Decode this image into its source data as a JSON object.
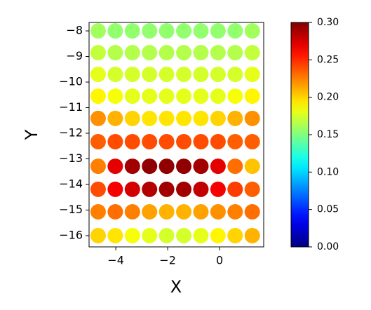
{
  "chart_data": {
    "type": "scatter",
    "xlabel": "X",
    "ylabel": "Y",
    "x": [
      -4.68,
      -4.02,
      -3.36,
      -2.7,
      -2.04,
      -1.38,
      -0.72,
      -0.06,
      0.6,
      1.26,
      -4.68,
      -4.02,
      -3.36,
      -2.7,
      -2.04,
      -1.38,
      -0.72,
      -0.06,
      0.6,
      1.26,
      -4.68,
      -4.02,
      -3.36,
      -2.7,
      -2.04,
      -1.38,
      -0.72,
      -0.06,
      0.6,
      1.26,
      -4.68,
      -4.02,
      -3.36,
      -2.7,
      -2.04,
      -1.38,
      -0.72,
      -0.06,
      0.6,
      1.26,
      -4.68,
      -4.02,
      -3.36,
      -2.7,
      -2.04,
      -1.38,
      -0.72,
      -0.06,
      0.6,
      1.26,
      -4.68,
      -4.02,
      -3.36,
      -2.7,
      -2.04,
      -1.38,
      -0.72,
      -0.06,
      0.6,
      1.26,
      -4.68,
      -4.02,
      -3.36,
      -2.7,
      -2.04,
      -1.38,
      -0.72,
      -0.06,
      0.6,
      1.26,
      -4.68,
      -4.02,
      -3.36,
      -2.7,
      -2.04,
      -1.38,
      -0.72,
      -0.06,
      0.6,
      1.26,
      -4.68,
      -4.02,
      -3.36,
      -2.7,
      -2.04,
      -1.38,
      -0.72,
      -0.06,
      0.6,
      1.26,
      -4.68,
      -4.02,
      -3.36,
      -2.7,
      -2.04,
      -1.38,
      -0.72,
      -0.06,
      0.6,
      1.26
    ],
    "y": [
      -8,
      -8,
      -8,
      -8,
      -8,
      -8,
      -8,
      -8,
      -8,
      -8,
      -8.85,
      -8.85,
      -8.85,
      -8.85,
      -8.85,
      -8.85,
      -8.85,
      -8.85,
      -8.85,
      -8.85,
      -9.7,
      -9.7,
      -9.7,
      -9.7,
      -9.7,
      -9.7,
      -9.7,
      -9.7,
      -9.7,
      -9.7,
      -10.55,
      -10.55,
      -10.55,
      -10.55,
      -10.55,
      -10.55,
      -10.55,
      -10.55,
      -10.55,
      -10.55,
      -11.42,
      -11.42,
      -11.42,
      -11.42,
      -11.42,
      -11.42,
      -11.42,
      -11.42,
      -11.42,
      -11.42,
      -12.33,
      -12.33,
      -12.33,
      -12.33,
      -12.33,
      -12.33,
      -12.33,
      -12.33,
      -12.33,
      -12.33,
      -13.29,
      -13.29,
      -13.29,
      -13.29,
      -13.29,
      -13.29,
      -13.29,
      -13.29,
      -13.29,
      -13.29,
      -14.19,
      -14.19,
      -14.19,
      -14.19,
      -14.19,
      -14.19,
      -14.19,
      -14.19,
      -14.19,
      -14.19,
      -15.07,
      -15.07,
      -15.07,
      -15.07,
      -15.07,
      -15.07,
      -15.07,
      -15.07,
      -15.07,
      -15.07,
      -16,
      -16,
      -16,
      -16,
      -16,
      -16,
      -16,
      -16,
      -16,
      -16
    ],
    "values": [
      0.16,
      0.155,
      0.155,
      0.155,
      0.155,
      0.155,
      0.155,
      0.155,
      0.155,
      0.16,
      0.17,
      0.165,
      0.165,
      0.165,
      0.165,
      0.165,
      0.165,
      0.165,
      0.165,
      0.17,
      0.18,
      0.175,
      0.175,
      0.175,
      0.175,
      0.175,
      0.175,
      0.175,
      0.175,
      0.18,
      0.19,
      0.185,
      0.18,
      0.18,
      0.18,
      0.18,
      0.18,
      0.18,
      0.185,
      0.19,
      0.22,
      0.21,
      0.2,
      0.195,
      0.195,
      0.195,
      0.195,
      0.2,
      0.21,
      0.22,
      0.235,
      0.24,
      0.24,
      0.24,
      0.24,
      0.24,
      0.24,
      0.24,
      0.235,
      0.235,
      0.225,
      0.27,
      0.29,
      0.295,
      0.295,
      0.295,
      0.29,
      0.27,
      0.23,
      0.205,
      0.24,
      0.265,
      0.275,
      0.285,
      0.29,
      0.29,
      0.28,
      0.265,
      0.245,
      0.235,
      0.225,
      0.23,
      0.225,
      0.215,
      0.21,
      0.21,
      0.215,
      0.22,
      0.225,
      0.23,
      0.2,
      0.195,
      0.185,
      0.18,
      0.175,
      0.175,
      0.18,
      0.19,
      0.2,
      0.21
    ],
    "xlim": [
      -5.03,
      1.7
    ],
    "ylim": [
      -16.44,
      -7.67
    ],
    "xticks": [
      {
        "value": -4,
        "label": "−4"
      },
      {
        "value": -2,
        "label": "−2"
      },
      0
    ],
    "yticks": [
      {
        "value": -8,
        "label": "−8"
      },
      {
        "value": -9,
        "label": "−9"
      },
      {
        "value": -10,
        "label": "−10"
      },
      {
        "value": -11,
        "label": "−11"
      },
      {
        "value": -12,
        "label": "−12"
      },
      {
        "value": -13,
        "label": "−13"
      },
      {
        "value": -14,
        "label": "−14"
      },
      {
        "value": -15,
        "label": "−15"
      },
      {
        "value": -16,
        "label": "−16"
      }
    ],
    "colormap": "jet",
    "clim": [
      0,
      0.3
    ],
    "cticks": [
      {
        "value": 0,
        "label": "0.00"
      },
      0.05,
      {
        "value": 0.1,
        "label": "0.10"
      },
      0.15,
      {
        "value": 0.2,
        "label": "0.20"
      },
      0.25,
      {
        "value": 0.3,
        "label": "0.30"
      }
    ]
  }
}
